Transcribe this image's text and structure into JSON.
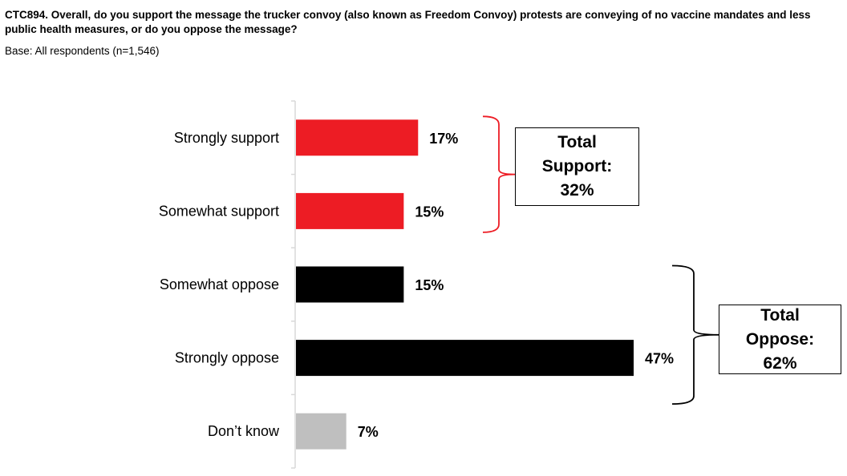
{
  "header": {
    "question": "CTC894. Overall, do you support the message the trucker convoy (also known as Freedom Convoy) protests are conveying of no vaccine mandates and less public health measures, or do you oppose the message?",
    "base": "Base: All respondents (n=1,546)"
  },
  "chart_data": {
    "type": "bar",
    "orientation": "horizontal",
    "categories": [
      "Strongly support",
      "Somewhat support",
      "Somewhat oppose",
      "Strongly oppose",
      "Don’t know"
    ],
    "values": [
      17,
      15,
      15,
      47,
      7
    ],
    "value_labels": [
      "17%",
      "15%",
      "15%",
      "47%",
      "7%"
    ],
    "bar_colors": [
      "#ed1c24",
      "#ed1c24",
      "#000000",
      "#000000",
      "#bfbfbf"
    ],
    "unit": "%",
    "xlim": [
      0,
      50
    ],
    "grid": false,
    "legend": "none",
    "annotations": [
      {
        "id": "support",
        "line1": "Total",
        "line2": "Support:",
        "line3": "32%",
        "bracket_color": "#ed1c24",
        "covers": [
          "Strongly support",
          "Somewhat support"
        ]
      },
      {
        "id": "oppose",
        "line1": "Total",
        "line2": "Oppose:",
        "line3": "62%",
        "bracket_color": "#000000",
        "covers": [
          "Somewhat oppose",
          "Strongly oppose"
        ]
      }
    ]
  }
}
